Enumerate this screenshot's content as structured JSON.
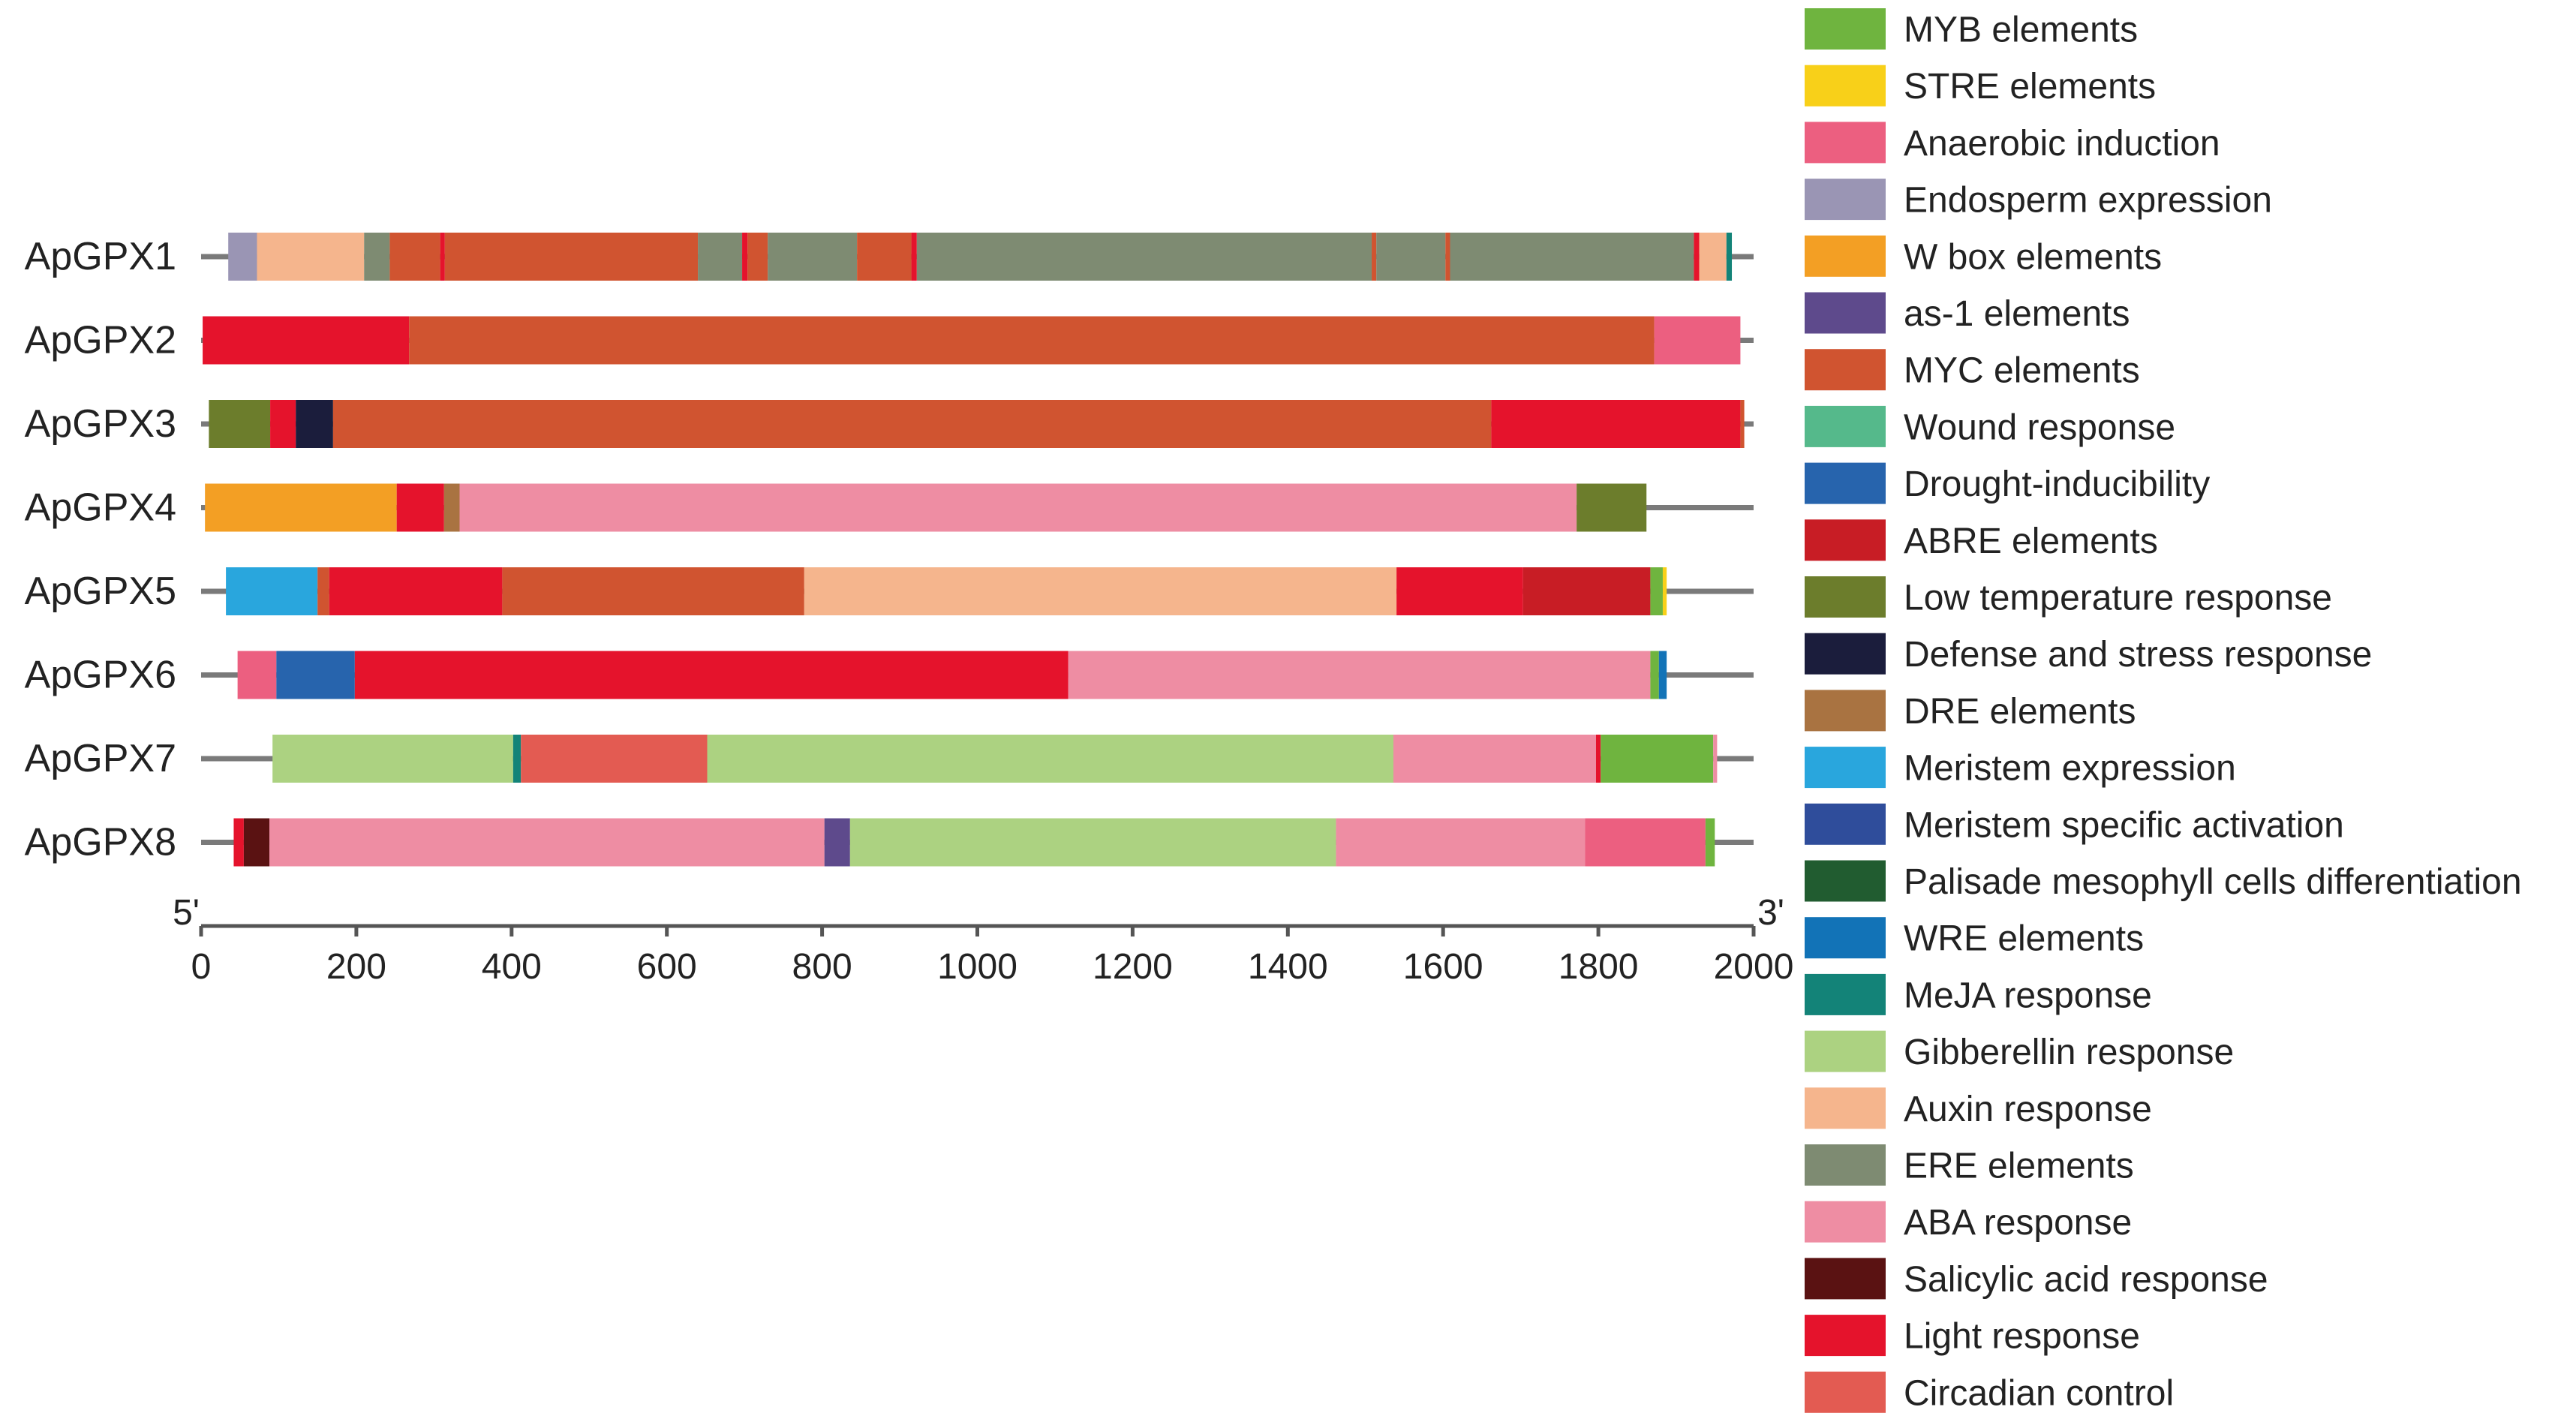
{
  "chart_data": {
    "type": "bar",
    "subtype": "cis-element-map",
    "title": "",
    "xlim": [
      0,
      2000
    ],
    "x_ticks": [
      0,
      200,
      400,
      600,
      800,
      1000,
      1200,
      1400,
      1600,
      1800,
      2000
    ],
    "axis_start_label": "5'",
    "axis_end_label": "3'",
    "colors": {
      "MYB elements": "#6fb43f",
      "STRE elements": "#f8d019",
      "Anaerobic induction": "#ec5f80",
      "Endosperm expression": "#9a95b4",
      "W box elements": "#f39f24",
      "as-1 elements": "#5e4a8c",
      "MYC elements": "#d05430",
      "Wound response": "#55b98b",
      "Drought-inducibility": "#2764ad",
      "ABRE elements": "#c81d25",
      "Low temperature response": "#6c7d2c",
      "Defense and stress response": "#1b1d3c",
      "DRE elements": "#a97341",
      "Meristem expression": "#29a6dd",
      "Meristem specific activation": "#2f4d9b",
      "Palisade mesophyll cells differentiation": "#215c30",
      "WRE elements": "#1273b7",
      "MeJA response": "#138378",
      "Gibberellin response": "#acd281",
      "Auxin response": "#f5b58d",
      "ERE elements": "#7e8b72",
      "ABA response": "#ee8da3",
      "Salicylic acid response": "#5a1212",
      "Light response": "#e5132c",
      "Circadian control": "#e35b52"
    },
    "legend": [
      "MYB elements",
      "STRE elements",
      "Anaerobic induction",
      "Endosperm expression",
      "W box elements",
      "as-1 elements",
      "MYC elements",
      "Wound response",
      "Drought-inducibility",
      "ABRE elements",
      "Low temperature response",
      "Defense and stress response",
      "DRE elements",
      "Meristem expression",
      "Meristem specific activation",
      "Palisade mesophyll cells differentiation",
      "WRE elements",
      "MeJA response",
      "Gibberellin response",
      "Auxin response",
      "ERE elements",
      "ABA response",
      "Salicylic acid response",
      "Light response",
      "Circadian control"
    ],
    "genes": [
      {
        "name": "ApGPX1",
        "line": [
          0,
          2000
        ],
        "segments": [
          {
            "start": 35,
            "end": 72,
            "element": "Endosperm expression"
          },
          {
            "start": 72,
            "end": 210,
            "element": "Auxin response"
          },
          {
            "start": 210,
            "end": 243,
            "element": "ERE elements"
          },
          {
            "start": 243,
            "end": 308,
            "element": "MYC elements"
          },
          {
            "start": 308,
            "end": 314,
            "element": "Light response"
          },
          {
            "start": 314,
            "end": 640,
            "element": "MYC elements"
          },
          {
            "start": 640,
            "end": 697,
            "element": "ERE elements"
          },
          {
            "start": 697,
            "end": 704,
            "element": "Light response"
          },
          {
            "start": 704,
            "end": 730,
            "element": "MYC elements"
          },
          {
            "start": 730,
            "end": 845,
            "element": "ERE elements"
          },
          {
            "start": 845,
            "end": 915,
            "element": "MYC elements"
          },
          {
            "start": 915,
            "end": 922,
            "element": "Light response"
          },
          {
            "start": 922,
            "end": 1508,
            "element": "ERE elements"
          },
          {
            "start": 1508,
            "end": 1514,
            "element": "MYC elements"
          },
          {
            "start": 1514,
            "end": 1603,
            "element": "ERE elements"
          },
          {
            "start": 1603,
            "end": 1609,
            "element": "MYC elements"
          },
          {
            "start": 1609,
            "end": 1923,
            "element": "ERE elements"
          },
          {
            "start": 1923,
            "end": 1930,
            "element": "Light response"
          },
          {
            "start": 1930,
            "end": 1965,
            "element": "Auxin response"
          },
          {
            "start": 1965,
            "end": 1972,
            "element": "MeJA response"
          }
        ]
      },
      {
        "name": "ApGPX2",
        "line": [
          0,
          2000
        ],
        "segments": [
          {
            "start": 2,
            "end": 268,
            "element": "Light response"
          },
          {
            "start": 268,
            "end": 1872,
            "element": "MYC elements"
          },
          {
            "start": 1872,
            "end": 1983,
            "element": "Anaerobic induction"
          }
        ]
      },
      {
        "name": "ApGPX3",
        "line": [
          0,
          2000
        ],
        "segments": [
          {
            "start": 10,
            "end": 89,
            "element": "Low temperature response"
          },
          {
            "start": 89,
            "end": 122,
            "element": "Light response"
          },
          {
            "start": 122,
            "end": 170,
            "element": "Defense and stress response"
          },
          {
            "start": 170,
            "end": 1662,
            "element": "MYC elements"
          },
          {
            "start": 1662,
            "end": 1983,
            "element": "Light response"
          },
          {
            "start": 1983,
            "end": 1988,
            "element": "MYC elements"
          }
        ]
      },
      {
        "name": "ApGPX4",
        "line": [
          0,
          2000
        ],
        "segments": [
          {
            "start": 5,
            "end": 252,
            "element": "W box elements"
          },
          {
            "start": 252,
            "end": 313,
            "element": "Light response"
          },
          {
            "start": 313,
            "end": 333,
            "element": "DRE elements"
          },
          {
            "start": 333,
            "end": 1772,
            "element": "ABA response"
          },
          {
            "start": 1772,
            "end": 1862,
            "element": "Low temperature response"
          }
        ]
      },
      {
        "name": "ApGPX5",
        "line": [
          0,
          2000
        ],
        "segments": [
          {
            "start": 32,
            "end": 150,
            "element": "Meristem expression"
          },
          {
            "start": 150,
            "end": 165,
            "element": "MYC elements"
          },
          {
            "start": 165,
            "end": 388,
            "element": "Light response"
          },
          {
            "start": 388,
            "end": 777,
            "element": "MYC elements"
          },
          {
            "start": 777,
            "end": 1540,
            "element": "Auxin response"
          },
          {
            "start": 1540,
            "end": 1703,
            "element": "Light response"
          },
          {
            "start": 1703,
            "end": 1867,
            "element": "ABRE elements"
          },
          {
            "start": 1867,
            "end": 1883,
            "element": "MYB elements"
          },
          {
            "start": 1883,
            "end": 1888,
            "element": "STRE elements"
          }
        ]
      },
      {
        "name": "ApGPX6",
        "line": [
          0,
          2000
        ],
        "segments": [
          {
            "start": 47,
            "end": 97,
            "element": "Anaerobic induction"
          },
          {
            "start": 97,
            "end": 198,
            "element": "Drought-inducibility"
          },
          {
            "start": 198,
            "end": 1117,
            "element": "Light response"
          },
          {
            "start": 1117,
            "end": 1867,
            "element": "ABA response"
          },
          {
            "start": 1867,
            "end": 1878,
            "element": "MYB elements"
          },
          {
            "start": 1878,
            "end": 1888,
            "element": "WRE elements"
          }
        ]
      },
      {
        "name": "ApGPX7",
        "line": [
          0,
          2000
        ],
        "segments": [
          {
            "start": 92,
            "end": 402,
            "element": "Gibberellin response"
          },
          {
            "start": 402,
            "end": 412,
            "element": "MeJA response"
          },
          {
            "start": 412,
            "end": 652,
            "element": "Circadian control"
          },
          {
            "start": 652,
            "end": 1536,
            "element": "Gibberellin response"
          },
          {
            "start": 1536,
            "end": 1797,
            "element": "ABA response"
          },
          {
            "start": 1797,
            "end": 1803,
            "element": "Light response"
          },
          {
            "start": 1803,
            "end": 1948,
            "element": "MYB elements"
          },
          {
            "start": 1948,
            "end": 1953,
            "element": "ABA response"
          }
        ]
      },
      {
        "name": "ApGPX8",
        "line": [
          0,
          2000
        ],
        "segments": [
          {
            "start": 42,
            "end": 55,
            "element": "Light response"
          },
          {
            "start": 55,
            "end": 88,
            "element": "Salicylic acid response"
          },
          {
            "start": 88,
            "end": 803,
            "element": "ABA response"
          },
          {
            "start": 803,
            "end": 836,
            "element": "as-1 elements"
          },
          {
            "start": 836,
            "end": 1462,
            "element": "Gibberellin response"
          },
          {
            "start": 1462,
            "end": 1783,
            "element": "ABA response"
          },
          {
            "start": 1783,
            "end": 1938,
            "element": "Anaerobic induction"
          },
          {
            "start": 1938,
            "end": 1950,
            "element": "MYB elements"
          }
        ]
      }
    ]
  }
}
